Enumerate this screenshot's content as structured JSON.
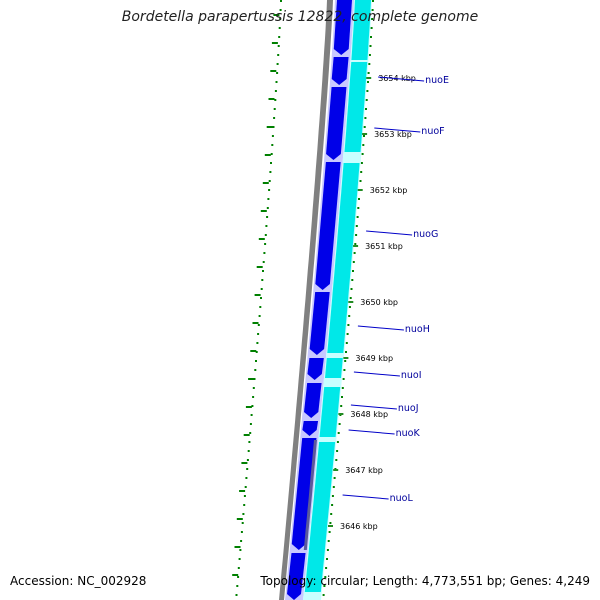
{
  "title": "Bordetella parapertussis 12822, complete genome",
  "accession_text": "Accession: NC_002928",
  "summary_text": "Topology: circular; Length: 4,773,551 bp; Genes: 4,249",
  "colors": {
    "background": "#ffffff",
    "backbone": "#808080",
    "forward_cds": "#0000e8",
    "reverse_cds": "#00e8e8",
    "forward_track_bg": "#c8c8ff",
    "reverse_track_bg": "#c8ffff",
    "tick": "#228b22",
    "dots": "#008000",
    "gene_label": "#00009c",
    "gene_line": "#0000c8"
  },
  "ticks": [
    {
      "label": "3654 kbp"
    },
    {
      "label": "3653 kbp"
    },
    {
      "label": "3652 kbp"
    },
    {
      "label": "3651 kbp"
    },
    {
      "label": "3650 kbp"
    },
    {
      "label": "3649 kbp"
    },
    {
      "label": "3648 kbp"
    },
    {
      "label": "3647 kbp"
    },
    {
      "label": "3646 kbp"
    }
  ],
  "genes": [
    {
      "name": "nuoE"
    },
    {
      "name": "nuoF"
    },
    {
      "name": "nuoG"
    },
    {
      "name": "nuoH"
    },
    {
      "name": "nuoI"
    },
    {
      "name": "nuoJ"
    },
    {
      "name": "nuoK"
    },
    {
      "name": "nuoL"
    }
  ]
}
